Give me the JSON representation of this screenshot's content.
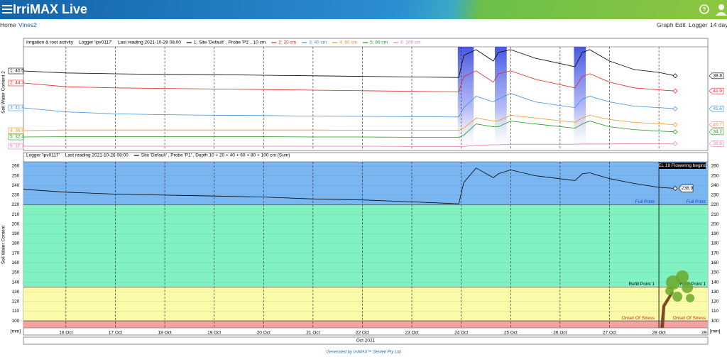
{
  "header": {
    "title": "IrriMAX Live"
  },
  "nav": {
    "left": [
      "Home",
      "Vines2"
    ],
    "right": [
      "Graph",
      "Edit",
      "Logger",
      "14 days"
    ]
  },
  "footer": "Generated by IrriMAX™ Sentek Pty Ltd",
  "chart_data": [
    {
      "type": "line",
      "title": "Irrigation & root activity",
      "subtitle": [
        "Logger 'ipv0117'",
        "Last reading 2021-10-28 08:00"
      ],
      "ylabel": "Soil Water Content 2",
      "xlim": [
        15.14,
        28.99
      ],
      "xticks": [
        16,
        17,
        18,
        19,
        20,
        21,
        22,
        23,
        24,
        25,
        26,
        27,
        28
      ],
      "irrigation": [
        [
          23.93,
          24.25
        ],
        [
          24.68,
          24.92
        ],
        [
          26.28,
          26.52
        ]
      ],
      "irrigation_color": "#3344dd",
      "x": [
        15.14,
        16,
        17,
        18,
        19,
        20,
        21,
        22,
        23,
        23.95,
        24.05,
        24.3,
        24.65,
        24.75,
        25.0,
        25.5,
        26.3,
        26.45,
        26.6,
        27,
        27.5,
        28.0,
        28.33
      ],
      "series": [
        {
          "name": "1: Site 'Default' , Probe 'P1' , 10 cm",
          "color": "#000000",
          "start_label": "1: 40.5",
          "values": [
            40.5,
            39.8,
            39.5,
            39.3,
            39.2,
            39.0,
            38.8,
            38.6,
            38.4,
            38.2,
            46,
            48,
            44,
            47,
            48,
            45,
            42,
            47,
            48,
            44,
            41,
            40,
            38.8
          ]
        },
        {
          "name": "2: 20 cm",
          "color": "#e02020",
          "start_label": "2: 44.7",
          "values": [
            44.7,
            43.4,
            43.0,
            42.8,
            42.6,
            42.4,
            42.2,
            42.0,
            41.8,
            41.6,
            47,
            49,
            45,
            48,
            49,
            46,
            43,
            47,
            48,
            45,
            43,
            42.3,
            41.9
          ]
        },
        {
          "name": "3: 40 cm",
          "color": "#3a8fd8",
          "start_label": "3: 41.9",
          "values": [
            41.9,
            40.5,
            39.8,
            39.5,
            39.3,
            39.2,
            39.0,
            38.9,
            38.8,
            38.7,
            42,
            46,
            44,
            45,
            47,
            44,
            42,
            45,
            46,
            44,
            42.5,
            42,
            41.6
          ]
        },
        {
          "name": "4: 60 cm",
          "color": "#f0901a",
          "start_label": "4: 38.6",
          "values": [
            38.6,
            38.8,
            38.8,
            38.8,
            38.8,
            38.8,
            38.8,
            38.7,
            38.7,
            38.7,
            39.5,
            43,
            42,
            42,
            44,
            43,
            41.5,
            43,
            44,
            42.5,
            41.5,
            41,
            40.7
          ]
        },
        {
          "name": "5: 80 cm",
          "color": "#1a9a1a",
          "start_label": "5: 32.4",
          "values": [
            32.4,
            32.5,
            32.5,
            32.5,
            32.5,
            32.5,
            32.4,
            32.4,
            32.3,
            32.3,
            33,
            37,
            36,
            36,
            38,
            37,
            35.5,
            37,
            38,
            36,
            35,
            34.5,
            34.2
          ]
        },
        {
          "name": "6: 100 cm",
          "color": "#e87aba",
          "start_label": "6: 37.7",
          "values": [
            37.7,
            37.7,
            37.7,
            37.7,
            37.7,
            37.7,
            37.7,
            37.7,
            37.6,
            37.6,
            37.6,
            38.0,
            38.2,
            38.2,
            38.4,
            38.4,
            38.4,
            38.5,
            38.5,
            38.5,
            38.6,
            38.6,
            38.6
          ]
        }
      ]
    },
    {
      "type": "line",
      "subtitle": [
        "Logger 'ipv0117'",
        "Last reading 2021-10-28 08:00"
      ],
      "ylabel": "Soil Water Content",
      "unit": "[mm]",
      "xlabel": "Oct 2021",
      "xlim": [
        15.14,
        28.99
      ],
      "xticks": [
        {
          "value": 16,
          "label": "16 Oct"
        },
        {
          "value": 17,
          "label": "17 Oct"
        },
        {
          "value": 18,
          "label": "18 Oct"
        },
        {
          "value": 19,
          "label": "19 Oct"
        },
        {
          "value": 20,
          "label": "20 Oct"
        },
        {
          "value": 21,
          "label": "21 Oct"
        },
        {
          "value": 22,
          "label": "22 Oct"
        },
        {
          "value": 23,
          "label": "23 Oct"
        },
        {
          "value": 24,
          "label": "24 Oct"
        },
        {
          "value": 25,
          "label": "25 Oct"
        },
        {
          "value": 26,
          "label": "26 Oct"
        },
        {
          "value": 27,
          "label": "27 Oct"
        },
        {
          "value": 28,
          "label": "28 Oct"
        },
        {
          "value": 29,
          "label": "29 Oct"
        }
      ],
      "ylim": [
        92.7,
        264.4
      ],
      "yticks": [
        100,
        110,
        120,
        130,
        140,
        150,
        160,
        170,
        180,
        190,
        200,
        210,
        220,
        230,
        240,
        250,
        260
      ],
      "zones": [
        {
          "label": "Full Point",
          "value": 220,
          "color": "#7ab6f2",
          "label_color": "#1a3fd0"
        },
        {
          "label": "Refill Point 1",
          "value": 135,
          "color": "#80f2c2",
          "label_color": "#000000"
        },
        {
          "label": "Onset Of Stress",
          "value": 100,
          "color": "#fafaa8",
          "label_color": "#e02020"
        }
      ],
      "below_color": "#f4a3a3",
      "annotation": {
        "label": "EL 19 Flowering begins",
        "x": 28
      },
      "x": [
        15.14,
        16,
        17,
        18,
        19,
        20,
        21,
        22,
        23,
        23.95,
        24.05,
        24.3,
        24.65,
        24.75,
        25.0,
        25.5,
        26.3,
        26.45,
        26.6,
        27,
        27.5,
        28.0,
        28.33
      ],
      "series": [
        {
          "name": "Site 'Default' , Probe 'P1' , Depth 10 + 20 + 40 + 60 + 80 + 100 cm (Sum)",
          "color": "#000000",
          "values": [
            236,
            233,
            231,
            230,
            229,
            228,
            226,
            225,
            223,
            221,
            243,
            258,
            248,
            252,
            256,
            250,
            245,
            252,
            253,
            247,
            242,
            238,
            236.9
          ]
        }
      ]
    }
  ]
}
